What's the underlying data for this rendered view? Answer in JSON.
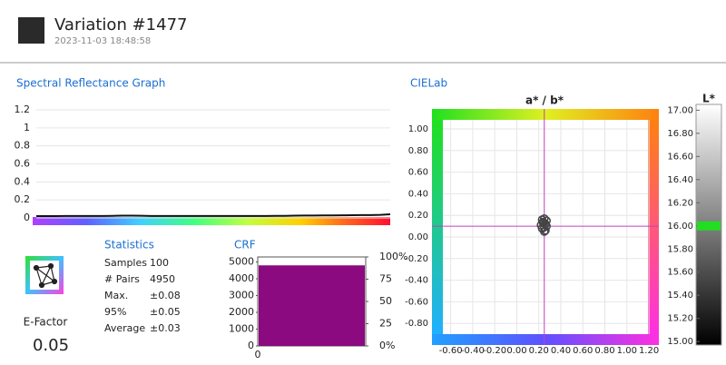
{
  "header": {
    "title": "Variation #1477",
    "timestamp": "2023-11-03 18:48:58"
  },
  "statistics": {
    "title": "Statistics",
    "rows": [
      [
        "Samples",
        "100"
      ],
      [
        "# Pairs",
        "4950"
      ],
      [
        "Max.",
        "±0.08"
      ],
      [
        "95%",
        "±0.05"
      ],
      [
        "Average",
        "±0.03"
      ]
    ]
  },
  "e_factor": {
    "label": "E-Factor",
    "value": "0.05"
  },
  "chart_data": [
    {
      "type": "line",
      "title": "Spectral Reflectance Graph",
      "color": "#111111",
      "values": [
        0.02,
        0.02,
        0.02,
        0.021,
        0.021,
        0.022,
        0.022,
        0.022,
        0.023,
        0.025,
        0.025,
        0.024,
        0.022,
        0.022,
        0.022,
        0.022,
        0.022,
        0.022,
        0.022,
        0.022,
        0.022,
        0.022,
        0.022,
        0.022,
        0.022,
        0.023,
        0.023,
        0.025,
        0.026,
        0.027,
        0.028,
        0.028,
        0.029,
        0.03,
        0.031,
        0.032,
        0.034,
        0.04
      ],
      "ylim": [
        0,
        1.2
      ],
      "yticks": [
        0,
        0.2,
        0.4,
        0.6,
        0.8,
        1,
        1.2
      ],
      "grid": true
    },
    {
      "type": "bar",
      "title": "CRF",
      "color": "#8b0a80",
      "values": [
        4800
      ],
      "ylim": [
        0,
        5300
      ],
      "yticks": [
        0,
        1000,
        2000,
        3000,
        4000,
        5000
      ],
      "y2lim": [
        0,
        100
      ],
      "y2ticks": [
        {
          "value": 0,
          "label": "0%"
        },
        25,
        50,
        75,
        {
          "value": 100,
          "label": "100%"
        }
      ],
      "xticks": [
        0
      ]
    },
    {
      "type": "scatter",
      "title": "CIELab",
      "subtitle": "a* / b*",
      "color": "#444444",
      "x": [
        0.23,
        0.25,
        0.27,
        0.24,
        0.26,
        0.22,
        0.25,
        0.27,
        0.23,
        0.26,
        0.25,
        0.24
      ],
      "values": [
        0.16,
        0.17,
        0.15,
        0.13,
        0.12,
        0.11,
        0.09,
        0.1,
        0.08,
        0.06,
        0.05,
        0.14
      ],
      "xlim": [
        -0.77,
        1.29
      ],
      "ylim": [
        -1.0,
        1.185
      ],
      "xticks": [
        {
          "value": -0.6,
          "label": "-0.60"
        },
        {
          "value": -0.4,
          "label": "-0.40"
        },
        {
          "value": -0.2,
          "label": "-0.20"
        },
        {
          "value": 0,
          "label": "0.00"
        },
        {
          "value": 0.2,
          "label": "0.20"
        },
        {
          "value": 0.4,
          "label": "0.40"
        },
        {
          "value": 0.6,
          "label": "0.60"
        },
        {
          "value": 0.8,
          "label": "0.80"
        },
        {
          "value": 1,
          "label": "1.00"
        },
        {
          "value": 1.2,
          "label": "1.20"
        }
      ],
      "yticks": [
        {
          "value": -0.8,
          "label": "-0.80"
        },
        {
          "value": -0.6,
          "label": "-0.60"
        },
        {
          "value": -0.4,
          "label": "-0.40"
        },
        {
          "value": -0.2,
          "label": "-0.20"
        },
        {
          "value": 0,
          "label": "0.00"
        },
        {
          "value": 0.2,
          "label": "0.20"
        },
        {
          "value": 0.4,
          "label": "0.40"
        },
        {
          "value": 0.6,
          "label": "0.60"
        },
        {
          "value": 0.8,
          "label": "0.80"
        },
        {
          "value": 1,
          "label": "1.00"
        }
      ],
      "reference_x": 0.25,
      "reference_y": 0.1,
      "reference_color": "#c040c0",
      "grid": true
    },
    {
      "type": "scale",
      "title": "L*",
      "value": 16,
      "color": "#22dd22",
      "ylim": [
        14.97,
        17.05
      ],
      "yticks": [
        {
          "value": 15,
          "label": "15.00"
        },
        {
          "value": 15.2,
          "label": "15.20"
        },
        {
          "value": 15.4,
          "label": "15.40"
        },
        {
          "value": 15.6,
          "label": "15.60"
        },
        {
          "value": 15.8,
          "label": "15.80"
        },
        {
          "value": 16,
          "label": "16.00"
        },
        {
          "value": 16.2,
          "label": "16.20"
        },
        {
          "value": 16.4,
          "label": "16.40"
        },
        {
          "value": 16.6,
          "label": "16.60"
        },
        {
          "value": 16.8,
          "label": "16.80"
        },
        {
          "value": 17,
          "label": "17.00"
        }
      ]
    }
  ]
}
